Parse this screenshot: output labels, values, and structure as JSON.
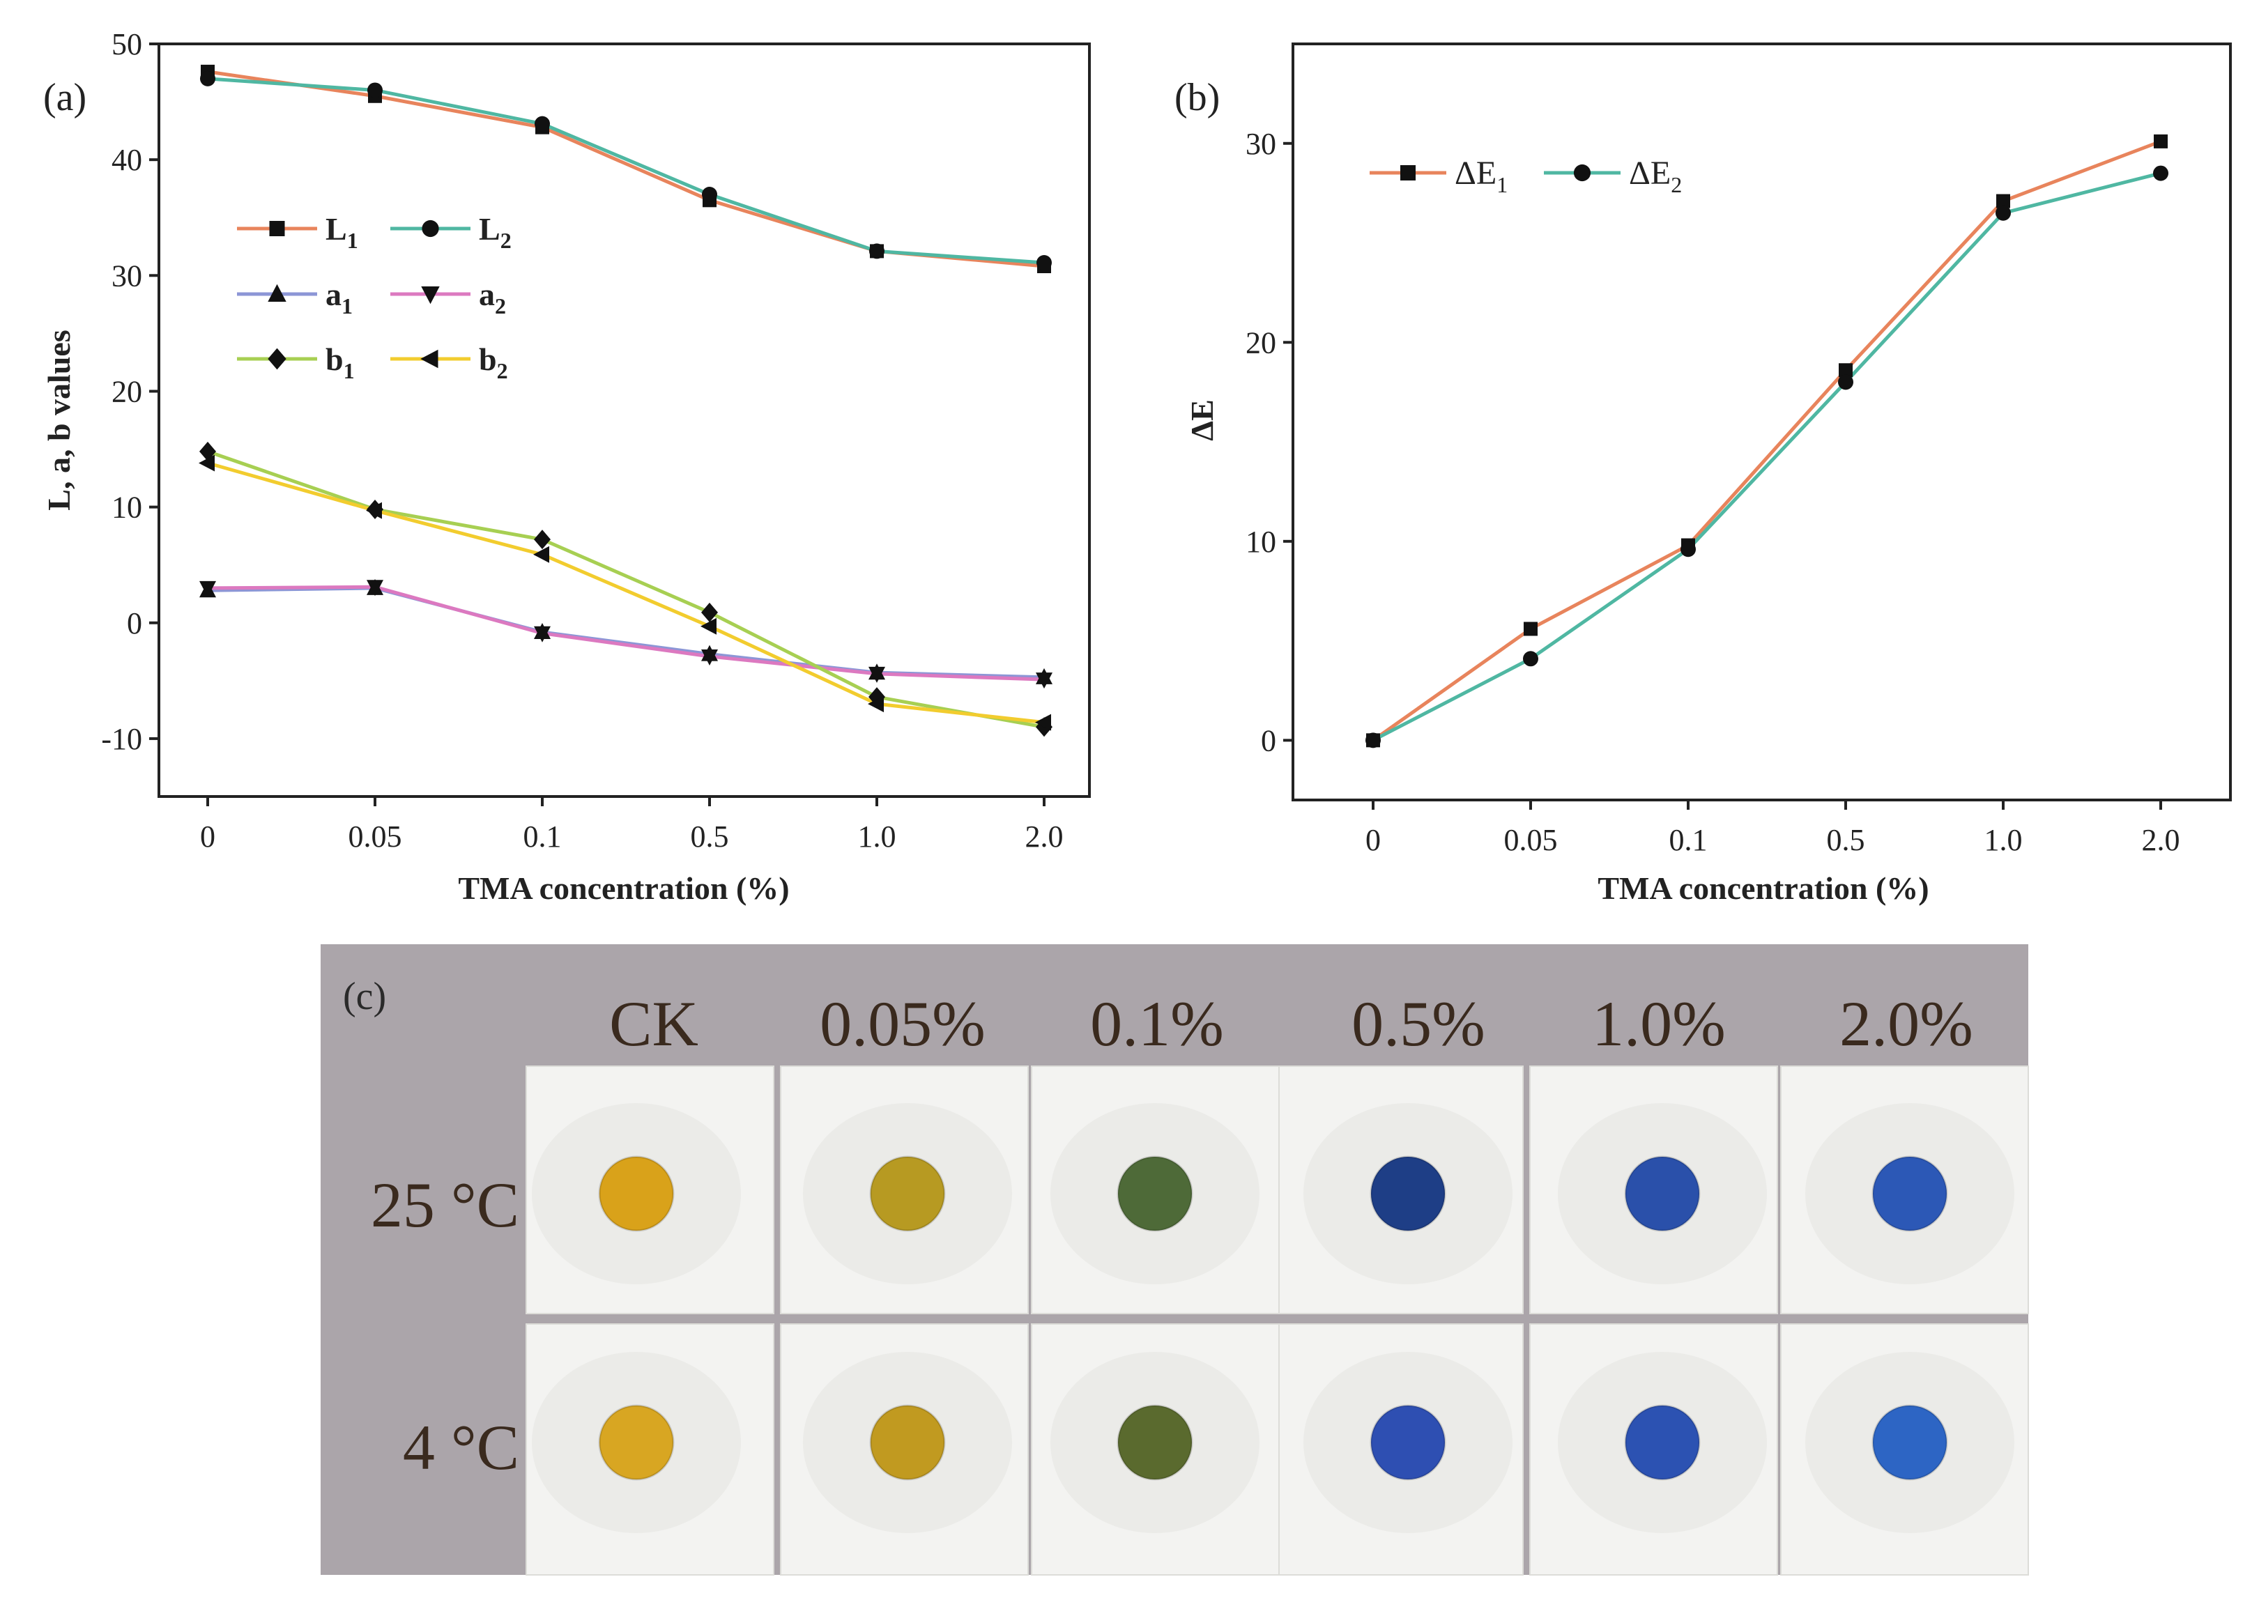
{
  "chart_data": [
    {
      "panel": "(a)",
      "type": "line",
      "xlabel": "TMA concentration (%)",
      "ylabel": "L, a, b values",
      "categories": [
        "0",
        "0.05",
        "0.1",
        "0.5",
        "1.0",
        "2.0"
      ],
      "ylim": [
        -15,
        50
      ],
      "yticks": [
        "50",
        "40",
        "30",
        "20",
        "10",
        "0",
        "-10"
      ],
      "series": [
        {
          "name": "L",
          "sub": "1",
          "color": "#e8845c",
          "marker": "square",
          "values": [
            47.6,
            45.5,
            42.8,
            36.5,
            32.1,
            30.8
          ]
        },
        {
          "name": "L",
          "sub": "2",
          "color": "#4fb7a2",
          "marker": "circle",
          "values": [
            47.0,
            46.0,
            43.1,
            37.0,
            32.1,
            31.1
          ]
        },
        {
          "name": "a",
          "sub": "1",
          "color": "#8c96d6",
          "marker": "triangle-up",
          "values": [
            2.8,
            3.0,
            -0.8,
            -2.7,
            -4.3,
            -4.7
          ]
        },
        {
          "name": "a",
          "sub": "2",
          "color": "#dc79c0",
          "marker": "triangle-down",
          "values": [
            3.0,
            3.1,
            -0.9,
            -2.9,
            -4.4,
            -4.9
          ]
        },
        {
          "name": "b",
          "sub": "1",
          "color": "#a7cf52",
          "marker": "diamond",
          "values": [
            14.8,
            9.8,
            7.2,
            0.9,
            -6.4,
            -9.0
          ]
        },
        {
          "name": "b",
          "sub": "2",
          "color": "#f2cc2e",
          "marker": "triangle-left",
          "values": [
            13.8,
            9.7,
            5.9,
            -0.3,
            -7.0,
            -8.6
          ]
        }
      ]
    },
    {
      "panel": "(b)",
      "type": "line",
      "xlabel": "TMA concentration (%)",
      "ylabel": "ΔE",
      "categories": [
        "0",
        "0.05",
        "0.1",
        "0.5",
        "1.0",
        "2.0"
      ],
      "ylim": [
        -3,
        35
      ],
      "yticks": [
        "30",
        "20",
        "10",
        "0"
      ],
      "series": [
        {
          "name": "ΔE",
          "sub": "1",
          "color": "#e8845c",
          "marker": "square",
          "values": [
            0,
            5.6,
            9.8,
            18.6,
            27.1,
            30.1
          ]
        },
        {
          "name": "ΔE",
          "sub": "2",
          "color": "#4fb7a2",
          "marker": "circle",
          "values": [
            0,
            4.1,
            9.6,
            18.0,
            26.5,
            28.5
          ]
        }
      ]
    }
  ],
  "photo": {
    "panel": "(c)",
    "columns": [
      "CK",
      "0.05%",
      "0.1%",
      "0.5%",
      "1.0%",
      "2.0%"
    ],
    "rows": [
      "25 °C",
      "4 °C"
    ],
    "spot_colors": [
      [
        "#d9a21a",
        "#b79a22",
        "#4e6a38",
        "#1e3e86",
        "#2a50aa",
        "#2c58b6"
      ],
      [
        "#d8a622",
        "#c19a20",
        "#5a6a2e",
        "#2e4fb2",
        "#2c52b2",
        "#2d65c4"
      ]
    ],
    "background_color": "#aba5aa",
    "paper_color": "#f3f3f1"
  }
}
